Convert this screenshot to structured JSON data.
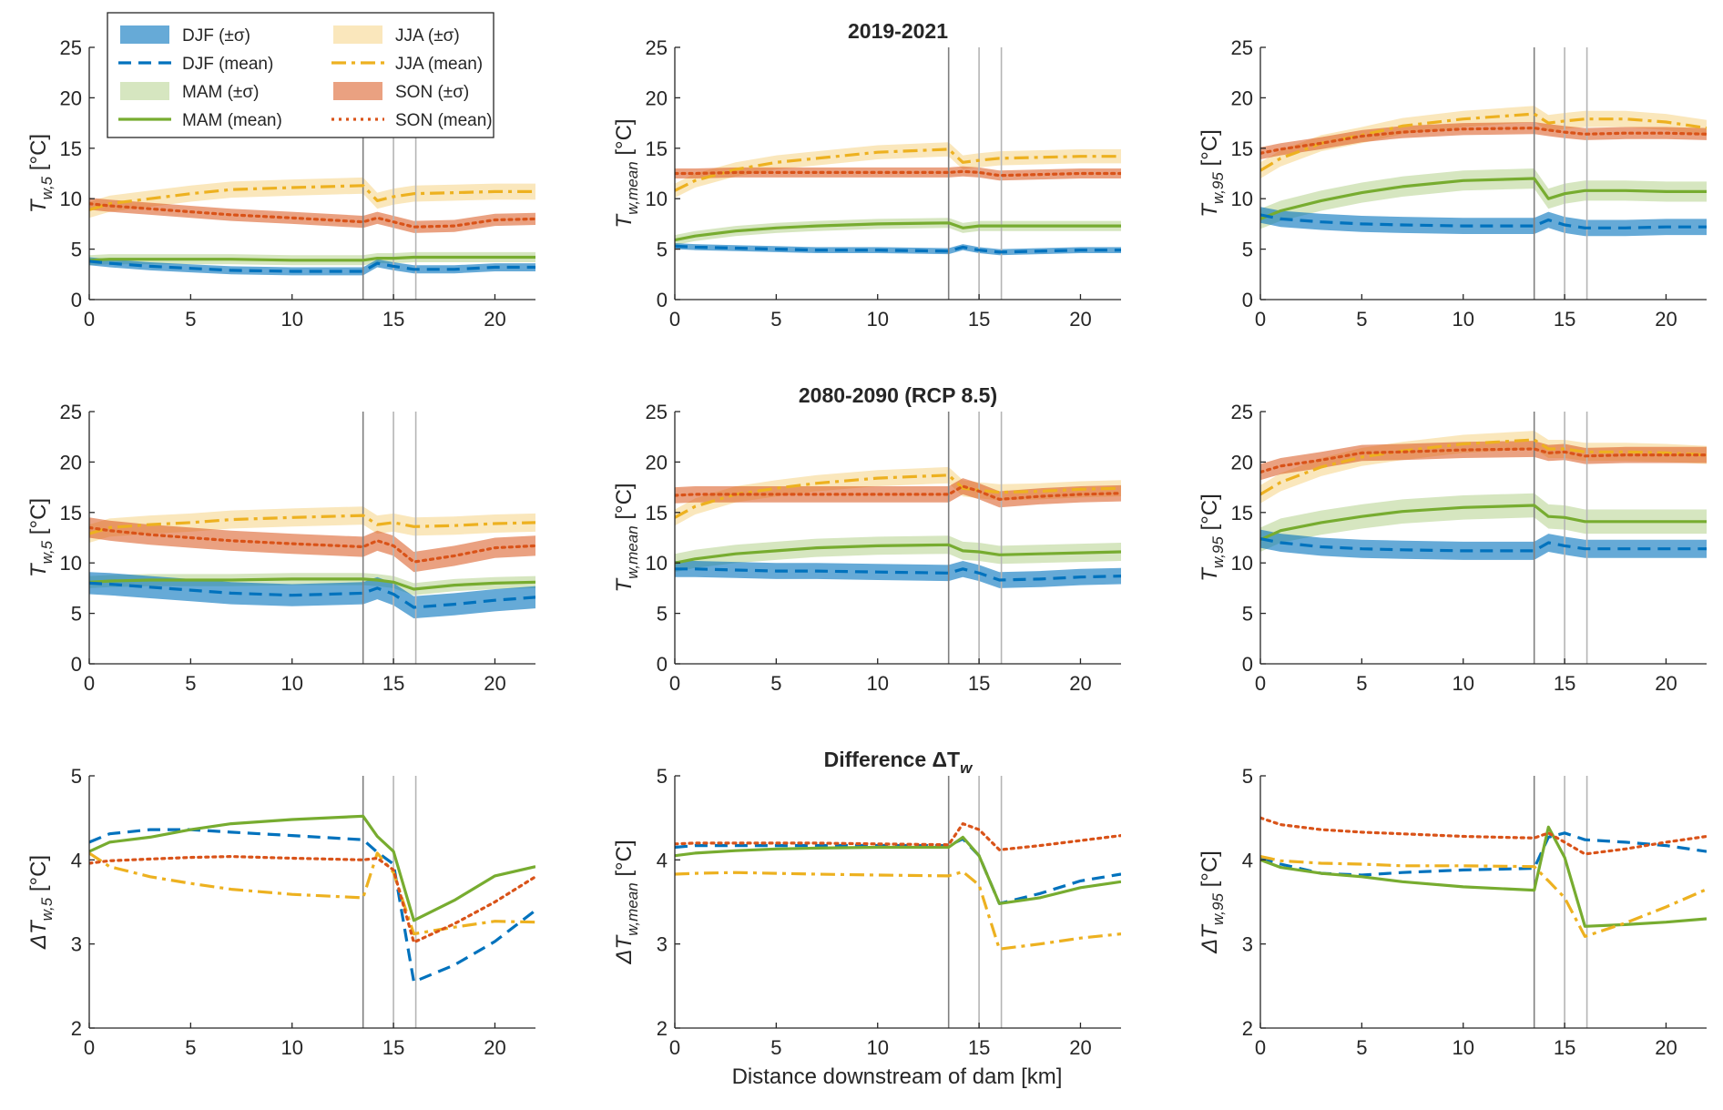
{
  "colors": {
    "DJF": "#0072BD",
    "MAM": "#77AC30",
    "JJA": "#EDB120",
    "SON": "#D95319",
    "vline": "#8c8c8c",
    "axis": "#262626"
  },
  "legend": [
    {
      "key": "DJF",
      "kind": "band",
      "label": "DJF (±σ)"
    },
    {
      "key": "JJA",
      "kind": "band",
      "label": "JJA (±σ)"
    },
    {
      "key": "DJF",
      "kind": "line",
      "label": "DJF (mean)"
    },
    {
      "key": "JJA",
      "kind": "line",
      "label": "JJA (mean)"
    },
    {
      "key": "MAM",
      "kind": "band",
      "label": "MAM (±σ)"
    },
    {
      "key": "SON",
      "kind": "band",
      "label": "SON (±σ)"
    },
    {
      "key": "MAM",
      "kind": "line",
      "label": "MAM (mean)"
    },
    {
      "key": "SON",
      "kind": "line",
      "label": "SON (mean)"
    }
  ],
  "row_titles": [
    "2019-2021",
    "2080-2090 (RCP 8.5)",
    "Difference ΔT"
  ],
  "row_title_sub": [
    "",
    "",
    "w"
  ],
  "xlabel": "Distance downstream of dam [km]",
  "chart_data": [
    {
      "type": "line",
      "title": "",
      "ylabel": "T",
      "ysub": "w,5",
      "yunit": "[°C]",
      "xlim": [
        0,
        22
      ],
      "ylim": [
        0,
        25
      ],
      "xticks": [
        0,
        5,
        10,
        15,
        20
      ],
      "yticks": [
        0,
        5,
        10,
        15,
        20,
        25
      ],
      "vlines": [
        13.5,
        15,
        16.1
      ],
      "x": [
        0,
        1,
        3,
        5,
        7,
        10,
        13.5,
        14.2,
        15,
        16,
        18,
        20,
        22
      ],
      "series": [
        {
          "name": "JJA",
          "mean": [
            8.9,
            9.5,
            10.0,
            10.5,
            10.9,
            11.1,
            11.3,
            9.8,
            10.2,
            10.5,
            10.6,
            10.7,
            10.7
          ],
          "sd": 0.8
        },
        {
          "name": "SON",
          "mean": [
            9.5,
            9.3,
            9.0,
            8.7,
            8.4,
            8.1,
            7.7,
            8.1,
            7.7,
            7.2,
            7.3,
            7.9,
            8.0
          ],
          "sd": 0.6
        },
        {
          "name": "MAM",
          "mean": [
            3.9,
            4.0,
            4.0,
            4.0,
            4.0,
            3.9,
            3.9,
            4.1,
            4.1,
            4.2,
            4.2,
            4.2,
            4.2
          ],
          "sd": 0.5
        },
        {
          "name": "DJF",
          "mean": [
            3.8,
            3.6,
            3.3,
            3.1,
            2.9,
            2.8,
            2.8,
            3.6,
            3.3,
            3.0,
            3.0,
            3.2,
            3.2
          ],
          "sd": 0.4
        }
      ]
    },
    {
      "type": "line",
      "title": "2019-2021",
      "ylabel": "T",
      "ysub": "w,mean",
      "yunit": "[°C]",
      "xlim": [
        0,
        22
      ],
      "ylim": [
        0,
        25
      ],
      "xticks": [
        0,
        5,
        10,
        15,
        20
      ],
      "yticks": [
        0,
        5,
        10,
        15,
        20,
        25
      ],
      "vlines": [
        13.5,
        15,
        16.1
      ],
      "x": [
        0,
        1,
        3,
        5,
        7,
        10,
        13.5,
        14.2,
        15,
        16,
        18,
        20,
        22
      ],
      "series": [
        {
          "name": "JJA",
          "mean": [
            10.8,
            11.8,
            12.9,
            13.6,
            14.0,
            14.6,
            14.9,
            13.6,
            13.8,
            14.0,
            14.1,
            14.2,
            14.2
          ],
          "sd": 0.7
        },
        {
          "name": "SON",
          "mean": [
            12.5,
            12.5,
            12.6,
            12.6,
            12.6,
            12.6,
            12.6,
            12.7,
            12.6,
            12.3,
            12.4,
            12.5,
            12.5
          ],
          "sd": 0.5
        },
        {
          "name": "MAM",
          "mean": [
            5.9,
            6.3,
            6.8,
            7.1,
            7.3,
            7.5,
            7.6,
            7.1,
            7.3,
            7.3,
            7.3,
            7.3,
            7.3
          ],
          "sd": 0.5
        },
        {
          "name": "DJF",
          "mean": [
            5.3,
            5.2,
            5.1,
            5.0,
            4.9,
            4.9,
            4.8,
            5.2,
            4.9,
            4.7,
            4.8,
            4.9,
            4.9
          ],
          "sd": 0.3
        }
      ]
    },
    {
      "type": "line",
      "title": "",
      "ylabel": "T",
      "ysub": "w,95",
      "yunit": "[°C]",
      "xlim": [
        0,
        22
      ],
      "ylim": [
        0,
        25
      ],
      "xticks": [
        0,
        5,
        10,
        15,
        20
      ],
      "yticks": [
        0,
        5,
        10,
        15,
        20,
        25
      ],
      "vlines": [
        13.5,
        15,
        16.1
      ],
      "x": [
        0,
        1,
        3,
        5,
        7,
        10,
        13.5,
        14.2,
        15,
        16,
        18,
        20,
        22
      ],
      "series": [
        {
          "name": "JJA",
          "mean": [
            12.8,
            14.0,
            15.5,
            16.3,
            17.2,
            17.9,
            18.4,
            17.5,
            17.7,
            17.9,
            17.9,
            17.6,
            17.0
          ],
          "sd": 0.8
        },
        {
          "name": "SON",
          "mean": [
            14.5,
            14.9,
            15.5,
            16.2,
            16.6,
            16.9,
            17.0,
            16.8,
            16.6,
            16.4,
            16.5,
            16.5,
            16.4
          ],
          "sd": 0.6
        },
        {
          "name": "MAM",
          "mean": [
            8.0,
            8.8,
            9.8,
            10.6,
            11.2,
            11.8,
            12.0,
            10.0,
            10.5,
            10.8,
            10.8,
            10.7,
            10.7
          ],
          "sd": 1.0
        },
        {
          "name": "DJF",
          "mean": [
            8.4,
            8.0,
            7.7,
            7.5,
            7.4,
            7.3,
            7.3,
            7.9,
            7.4,
            7.1,
            7.1,
            7.2,
            7.2
          ],
          "sd": 0.8
        }
      ]
    },
    {
      "type": "line",
      "title": "",
      "ylabel": "T",
      "ysub": "w,5",
      "yunit": "[°C]",
      "xlim": [
        0,
        22
      ],
      "ylim": [
        0,
        25
      ],
      "xticks": [
        0,
        5,
        10,
        15,
        20
      ],
      "yticks": [
        0,
        5,
        10,
        15,
        20,
        25
      ],
      "vlines": [
        13.5,
        15,
        16.1
      ],
      "x": [
        0,
        1,
        3,
        5,
        7,
        10,
        13.5,
        14.2,
        15,
        16,
        18,
        20,
        22
      ],
      "series": [
        {
          "name": "JJA",
          "mean": [
            12.9,
            13.5,
            13.8,
            14.0,
            14.3,
            14.5,
            14.7,
            13.8,
            14.0,
            13.6,
            13.7,
            13.9,
            14.0
          ],
          "sd": 0.9
        },
        {
          "name": "SON",
          "mean": [
            13.5,
            13.2,
            12.8,
            12.5,
            12.2,
            11.9,
            11.6,
            12.2,
            11.7,
            10.1,
            10.7,
            11.5,
            11.7
          ],
          "sd": 1.0
        },
        {
          "name": "MAM",
          "mean": [
            8.1,
            8.2,
            8.3,
            8.3,
            8.3,
            8.4,
            8.4,
            8.3,
            8.1,
            7.4,
            7.8,
            8.0,
            8.1
          ],
          "sd": 0.6
        },
        {
          "name": "DJF",
          "mean": [
            8.0,
            7.9,
            7.6,
            7.3,
            7.0,
            6.8,
            7.0,
            7.5,
            6.9,
            5.6,
            5.9,
            6.3,
            6.6
          ],
          "sd": 1.1
        }
      ]
    },
    {
      "type": "line",
      "title": "2080-2090 (RCP 8.5)",
      "ylabel": "T",
      "ysub": "w,mean",
      "yunit": "[°C]",
      "xlim": [
        0,
        22
      ],
      "ylim": [
        0,
        25
      ],
      "xticks": [
        0,
        5,
        10,
        15,
        20
      ],
      "yticks": [
        0,
        5,
        10,
        15,
        20,
        25
      ],
      "vlines": [
        13.5,
        15,
        16.1
      ],
      "x": [
        0,
        1,
        3,
        5,
        7,
        10,
        13.5,
        14.2,
        15,
        16,
        18,
        20,
        22
      ],
      "series": [
        {
          "name": "JJA",
          "mean": [
            14.5,
            15.6,
            16.8,
            17.4,
            17.9,
            18.4,
            18.7,
            17.4,
            17.2,
            17.0,
            17.1,
            17.3,
            17.4
          ],
          "sd": 0.8
        },
        {
          "name": "SON",
          "mean": [
            16.7,
            16.8,
            16.8,
            16.8,
            16.8,
            16.8,
            16.8,
            17.6,
            17.1,
            16.3,
            16.6,
            16.8,
            16.9
          ],
          "sd": 0.8
        },
        {
          "name": "MAM",
          "mean": [
            10.0,
            10.4,
            10.9,
            11.2,
            11.5,
            11.7,
            11.8,
            11.2,
            11.1,
            10.8,
            10.9,
            11.0,
            11.1
          ],
          "sd": 0.9
        },
        {
          "name": "DJF",
          "mean": [
            9.4,
            9.4,
            9.3,
            9.2,
            9.2,
            9.1,
            9.0,
            9.4,
            9.0,
            8.3,
            8.4,
            8.6,
            8.7
          ],
          "sd": 0.8
        }
      ]
    },
    {
      "type": "line",
      "title": "",
      "ylabel": "T",
      "ysub": "w,95",
      "yunit": "[°C]",
      "xlim": [
        0,
        22
      ],
      "ylim": [
        0,
        25
      ],
      "xticks": [
        0,
        5,
        10,
        15,
        20
      ],
      "yticks": [
        0,
        5,
        10,
        15,
        20,
        25
      ],
      "vlines": [
        13.5,
        15,
        16.1
      ],
      "x": [
        0,
        1,
        3,
        5,
        7,
        10,
        13.5,
        14.2,
        15,
        16,
        18,
        20,
        22
      ],
      "series": [
        {
          "name": "JJA",
          "mean": [
            16.8,
            18.0,
            19.5,
            20.5,
            21.1,
            21.8,
            22.2,
            21.3,
            21.3,
            21.0,
            21.0,
            20.9,
            20.7
          ],
          "sd": 0.9
        },
        {
          "name": "SON",
          "mean": [
            19.0,
            19.6,
            20.2,
            20.9,
            21.0,
            21.2,
            21.3,
            20.9,
            21.0,
            20.6,
            20.7,
            20.7,
            20.7
          ],
          "sd": 0.8
        },
        {
          "name": "MAM",
          "mean": [
            12.3,
            13.2,
            14.0,
            14.6,
            15.1,
            15.5,
            15.7,
            14.6,
            14.5,
            14.1,
            14.1,
            14.1,
            14.1
          ],
          "sd": 1.2
        },
        {
          "name": "DJF",
          "mean": [
            12.4,
            12.0,
            11.6,
            11.4,
            11.3,
            11.2,
            11.2,
            12.0,
            11.7,
            11.4,
            11.4,
            11.4,
            11.4
          ],
          "sd": 0.9
        }
      ]
    },
    {
      "type": "line",
      "title": "",
      "ylabel": "ΔT",
      "ysub": "w,5",
      "yunit": "[°C]",
      "xlim": [
        0,
        22
      ],
      "ylim": [
        2,
        5
      ],
      "xticks": [
        0,
        5,
        10,
        15,
        20
      ],
      "yticks": [
        2,
        3,
        4,
        5
      ],
      "vlines": [
        13.5,
        15,
        16.1
      ],
      "x": [
        0,
        1,
        3,
        5,
        7,
        10,
        13.5,
        14.2,
        15,
        16,
        18,
        20,
        22
      ],
      "series": [
        {
          "name": "DJF",
          "mean": [
            4.21,
            4.31,
            4.36,
            4.36,
            4.33,
            4.29,
            4.24,
            4.09,
            3.95,
            2.55,
            2.75,
            3.03,
            3.4
          ]
        },
        {
          "name": "MAM",
          "mean": [
            4.1,
            4.21,
            4.27,
            4.36,
            4.43,
            4.48,
            4.52,
            4.28,
            4.1,
            3.28,
            3.52,
            3.81,
            3.92
          ]
        },
        {
          "name": "JJA",
          "mean": [
            4.08,
            3.92,
            3.8,
            3.72,
            3.65,
            3.59,
            3.55,
            4.08,
            3.85,
            3.12,
            3.2,
            3.27,
            3.26
          ]
        },
        {
          "name": "SON",
          "mean": [
            3.96,
            3.99,
            4.01,
            4.03,
            4.04,
            4.02,
            4.0,
            4.02,
            3.88,
            3.02,
            3.24,
            3.5,
            3.8
          ]
        }
      ]
    },
    {
      "type": "line",
      "title": "Difference ΔT",
      "ylabel": "ΔT",
      "ysub": "w,mean",
      "yunit": "[°C]",
      "xlim": [
        0,
        22
      ],
      "ylim": [
        2,
        5
      ],
      "xticks": [
        0,
        5,
        10,
        15,
        20
      ],
      "yticks": [
        2,
        3,
        4,
        5
      ],
      "vlines": [
        13.5,
        15,
        16.1
      ],
      "x": [
        0,
        1,
        3,
        5,
        7,
        10,
        13.5,
        14.2,
        15,
        16,
        18,
        20,
        22
      ],
      "series": [
        {
          "name": "DJF",
          "mean": [
            4.15,
            4.17,
            4.17,
            4.17,
            4.17,
            4.17,
            4.17,
            4.25,
            4.05,
            3.48,
            3.6,
            3.75,
            3.83
          ]
        },
        {
          "name": "MAM",
          "mean": [
            4.05,
            4.08,
            4.11,
            4.13,
            4.14,
            4.15,
            4.15,
            4.27,
            4.05,
            3.48,
            3.55,
            3.67,
            3.74
          ]
        },
        {
          "name": "JJA",
          "mean": [
            3.83,
            3.84,
            3.85,
            3.84,
            3.83,
            3.82,
            3.81,
            3.86,
            3.7,
            2.94,
            3.0,
            3.07,
            3.12
          ]
        },
        {
          "name": "SON",
          "mean": [
            4.19,
            4.2,
            4.2,
            4.2,
            4.2,
            4.19,
            4.18,
            4.43,
            4.36,
            4.12,
            4.17,
            4.23,
            4.29
          ]
        }
      ]
    },
    {
      "type": "line",
      "title": "",
      "ylabel": "ΔT",
      "ysub": "w,95",
      "yunit": "[°C]",
      "xlim": [
        0,
        22
      ],
      "ylim": [
        2,
        5
      ],
      "xticks": [
        0,
        5,
        10,
        15,
        20
      ],
      "yticks": [
        2,
        3,
        4,
        5
      ],
      "vlines": [
        13.5,
        15,
        16.1
      ],
      "x": [
        0,
        1,
        3,
        5,
        7,
        10,
        13.5,
        14.2,
        15,
        16,
        18,
        20,
        22
      ],
      "series": [
        {
          "name": "DJF",
          "mean": [
            4.02,
            3.95,
            3.84,
            3.82,
            3.85,
            3.88,
            3.9,
            4.27,
            4.32,
            4.24,
            4.21,
            4.17,
            4.1
          ]
        },
        {
          "name": "MAM",
          "mean": [
            4.0,
            3.91,
            3.84,
            3.8,
            3.74,
            3.68,
            3.64,
            4.39,
            4.03,
            3.21,
            3.23,
            3.26,
            3.3
          ]
        },
        {
          "name": "JJA",
          "mean": [
            4.04,
            3.99,
            3.96,
            3.95,
            3.93,
            3.93,
            3.92,
            3.75,
            3.55,
            3.09,
            3.25,
            3.44,
            3.65
          ]
        },
        {
          "name": "SON",
          "mean": [
            4.5,
            4.42,
            4.36,
            4.33,
            4.31,
            4.28,
            4.26,
            4.32,
            4.21,
            4.07,
            4.13,
            4.21,
            4.28
          ]
        }
      ]
    }
  ]
}
